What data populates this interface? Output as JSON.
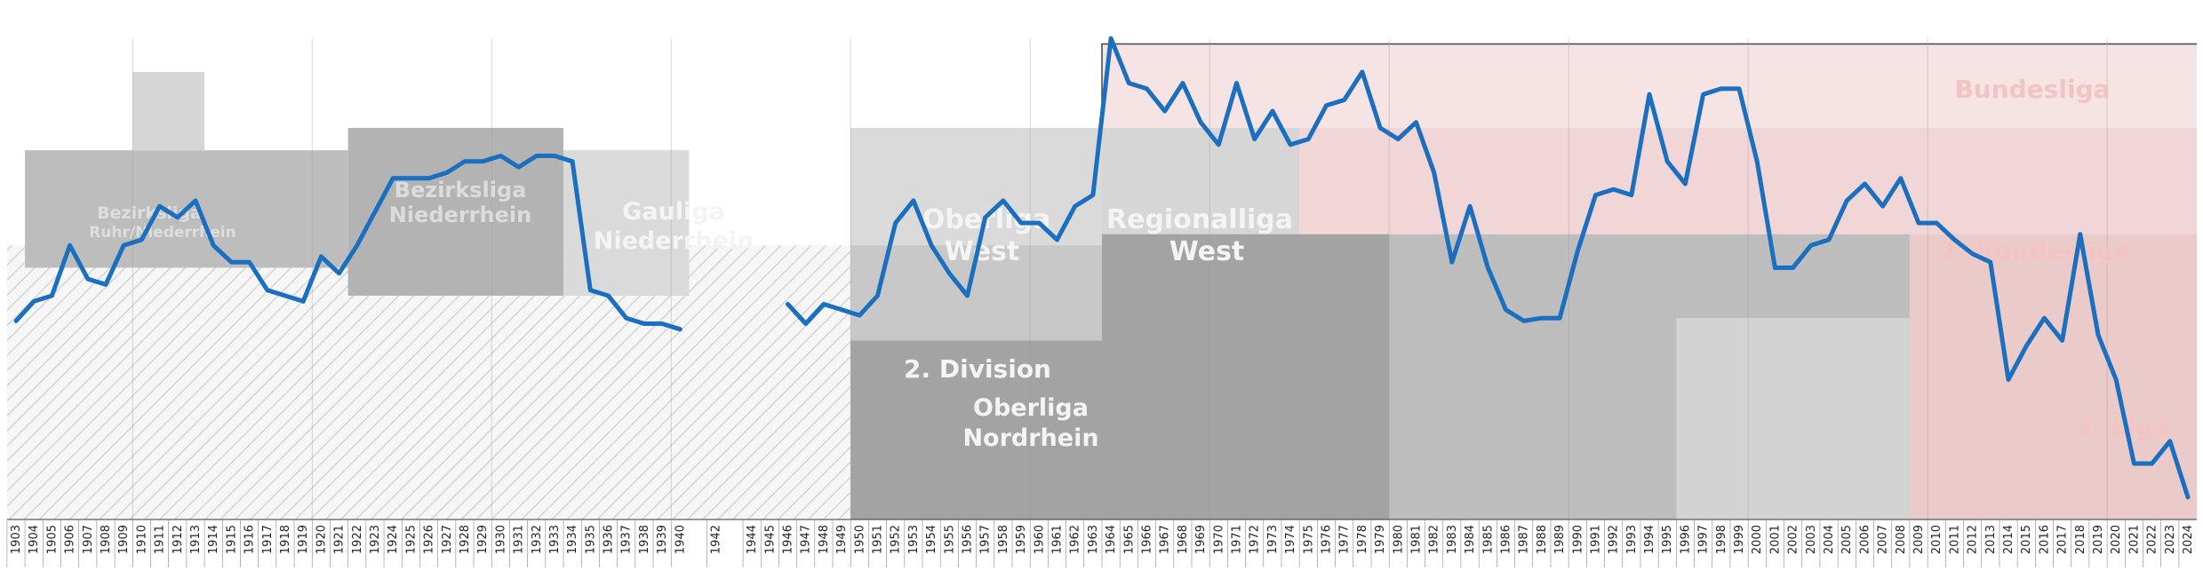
{
  "chart_data": {
    "type": "line",
    "title": "",
    "xlabel": "",
    "ylabel": "",
    "x_range": [
      1903,
      2024
    ],
    "grid": true,
    "colors": {
      "line": "#1a6fc0",
      "pink_light": "#f6e3e3",
      "pink_mid": "#f0d6d6",
      "pink_dark": "#ebcaca",
      "gray_light": "#dadada",
      "gray_mid": "#bdbdbd",
      "gray_dark": "#a3a3a3",
      "gray_darker": "#8c8c8c",
      "gray_darkest": "#767676",
      "hatch": "#d6d6d6"
    },
    "league_labels": [
      {
        "text": "Bundesliga",
        "color": "#f2c4c4"
      },
      {
        "text": "2. Bundesliga",
        "color": "#f2c4c4"
      },
      {
        "text": "3. Liga",
        "color": "#f2c4c4"
      },
      {
        "text": "Regionalliga",
        "color": "#f4f4f4"
      },
      {
        "text": "West",
        "color": "#f4f4f4"
      },
      {
        "text": "Oberliga",
        "color": "#f4f4f4"
      },
      {
        "text": "West",
        "color": "#f4f4f4"
      },
      {
        "text": "2. Division",
        "color": "#f4f4f4"
      },
      {
        "text": "Oberliga",
        "color": "#f4f4f4"
      },
      {
        "text": "Nordrhein",
        "color": "#f4f4f4"
      },
      {
        "text": "Gauliga",
        "color": "#f4f4f4"
      },
      {
        "text": "Niederrhein",
        "color": "#f4f4f4"
      },
      {
        "text": "Bezirksliga",
        "color": "#dcdcdc"
      },
      {
        "text": "Niederrhein",
        "color": "#dcdcdc"
      },
      {
        "text": "Bezirksliga",
        "color": "#dedede"
      },
      {
        "text": "Ruhr/Niederrhein",
        "color": "#dedede"
      }
    ],
    "series": [
      {
        "values": [
          [
            1903,
            35.5
          ],
          [
            1904,
            39
          ],
          [
            1905,
            40
          ],
          [
            1906,
            49
          ],
          [
            1907,
            43
          ],
          [
            1908,
            42
          ],
          [
            1909,
            49
          ],
          [
            1910,
            50
          ],
          [
            1911,
            56
          ],
          [
            1912,
            54
          ],
          [
            1913,
            57
          ],
          [
            1914,
            49
          ],
          [
            1915,
            46
          ],
          [
            1916,
            46
          ],
          [
            1917,
            41
          ],
          [
            1918,
            40
          ],
          [
            1919,
            39
          ],
          [
            1920,
            47
          ],
          [
            1921,
            44
          ],
          [
            1922,
            49
          ],
          [
            1923,
            55
          ],
          [
            1924,
            61
          ],
          [
            1925,
            61
          ],
          [
            1926,
            61
          ],
          [
            1927,
            62
          ],
          [
            1928,
            64
          ],
          [
            1929,
            64
          ],
          [
            1930,
            65
          ],
          [
            1931,
            63
          ],
          [
            1932,
            65
          ],
          [
            1933,
            65
          ],
          [
            1934,
            64
          ],
          [
            1935,
            41
          ],
          [
            1936,
            40
          ],
          [
            1937,
            36
          ],
          [
            1938,
            35
          ],
          [
            1939,
            35
          ],
          [
            1940,
            34
          ],
          null,
          [
            1946,
            38.5
          ],
          [
            1947,
            35
          ],
          [
            1948,
            38.5
          ],
          [
            1949,
            37.5
          ],
          [
            1950,
            36.5
          ],
          [
            1951,
            40
          ],
          [
            1952,
            53
          ],
          [
            1953,
            57
          ],
          [
            1954,
            49
          ],
          [
            1955,
            44
          ],
          [
            1956,
            40
          ],
          [
            1957,
            54
          ],
          [
            1958,
            57
          ],
          [
            1959,
            53
          ],
          [
            1960,
            53
          ],
          [
            1961,
            50
          ],
          [
            1962,
            56
          ],
          [
            1963,
            58
          ],
          [
            1964,
            86
          ],
          [
            1965,
            78
          ],
          [
            1966,
            77
          ],
          [
            1967,
            73
          ],
          [
            1968,
            78
          ],
          [
            1969,
            71
          ],
          [
            1970,
            67
          ],
          [
            1971,
            78
          ],
          [
            1972,
            68
          ],
          [
            1973,
            73
          ],
          [
            1974,
            67
          ],
          [
            1975,
            68
          ],
          [
            1976,
            74
          ],
          [
            1977,
            75
          ],
          [
            1978,
            80
          ],
          [
            1979,
            70
          ],
          [
            1980,
            68
          ],
          [
            1981,
            71
          ],
          [
            1982,
            62
          ],
          [
            1983,
            46
          ],
          [
            1984,
            56
          ],
          [
            1985,
            45
          ],
          [
            1986,
            37.5
          ],
          [
            1987,
            35.5
          ],
          [
            1988,
            36
          ],
          [
            1989,
            36
          ],
          [
            1990,
            48
          ],
          [
            1991,
            58
          ],
          [
            1992,
            59
          ],
          [
            1993,
            58
          ],
          [
            1994,
            76
          ],
          [
            1995,
            64
          ],
          [
            1996,
            60
          ],
          [
            1997,
            76
          ],
          [
            1998,
            77
          ],
          [
            1999,
            77
          ],
          [
            2000,
            64
          ],
          [
            2001,
            45
          ],
          [
            2002,
            45
          ],
          [
            2003,
            49
          ],
          [
            2004,
            50
          ],
          [
            2005,
            57
          ],
          [
            2006,
            60
          ],
          [
            2007,
            56
          ],
          [
            2008,
            61
          ],
          [
            2009,
            53
          ],
          [
            2010,
            53
          ],
          [
            2011,
            50
          ],
          [
            2012,
            47.5
          ],
          [
            2013,
            46
          ],
          [
            2014,
            25
          ],
          [
            2015,
            31
          ],
          [
            2016,
            36
          ],
          [
            2017,
            32
          ],
          [
            2018,
            51
          ],
          [
            2019,
            33
          ],
          [
            2020,
            25
          ],
          [
            2021,
            10
          ],
          [
            2022,
            10
          ],
          [
            2023,
            14
          ],
          [
            2024,
            4
          ]
        ]
      }
    ],
    "regions": [
      {
        "x": [
          1963.5,
          2024.5
        ],
        "y": [
          70,
          85
        ],
        "color": "#f6e3e3",
        "label": "pink-bundesliga"
      },
      {
        "x": [
          1974.5,
          2024.5
        ],
        "y": [
          51,
          70
        ],
        "color": "#f0d6d6",
        "label": "pink-2bundesliga"
      },
      {
        "x": [
          2008.5,
          2024.5
        ],
        "y": [
          0,
          51
        ],
        "color": "#ebcaca",
        "label": "pink-3liga"
      },
      {
        "x": [
          1979.5,
          2008.5
        ],
        "y": [
          0,
          51
        ],
        "color": "#bdbdbd",
        "label": "oberliga-nordrhein"
      },
      {
        "x": [
          1995.5,
          2008.5
        ],
        "y": [
          0,
          36
        ],
        "color": "#d3d3d3",
        "label": "oberliga-nordrhein-lower"
      },
      {
        "x": [
          1963.5,
          1974.5
        ],
        "y": [
          51,
          70
        ],
        "color": "#d6d6d6",
        "label": "regionalliga-west"
      },
      {
        "x": [
          1963.5,
          1979.5
        ],
        "y": [
          0,
          51
        ],
        "color": "#a3a3a3",
        "label": "regionalliga-lower"
      },
      {
        "x": [
          1949.5,
          1963.5
        ],
        "y": [
          32,
          70
        ],
        "color": "#c8c8c8",
        "label": "2-division"
      },
      {
        "x": [
          1949.5,
          1963.5
        ],
        "y": [
          49,
          70
        ],
        "color": "#dadada",
        "label": "oberliga-west"
      },
      {
        "x": [
          1949.5,
          1963.5
        ],
        "y": [
          0,
          32
        ],
        "color": "#a3a3a3",
        "label": "pre-1963-lower"
      },
      {
        "x": [
          1933.5,
          1940.5
        ],
        "y": [
          40,
          66
        ],
        "color": "#dadada",
        "label": "gauliga"
      },
      {
        "x": [
          1921.5,
          1933.5
        ],
        "y": [
          40,
          70
        ],
        "color": "#b3b3b3",
        "label": "bezirksliga-niederrhein"
      },
      {
        "x": [
          1903.5,
          1921.5
        ],
        "y": [
          45,
          66
        ],
        "color": "#bdbdbd",
        "label": "bezirksliga-ruhr"
      },
      {
        "x": [
          1909.5,
          1913.5
        ],
        "y": [
          66,
          80
        ],
        "color": "#d6d6d6",
        "label": "bezirksliga-top"
      }
    ]
  }
}
